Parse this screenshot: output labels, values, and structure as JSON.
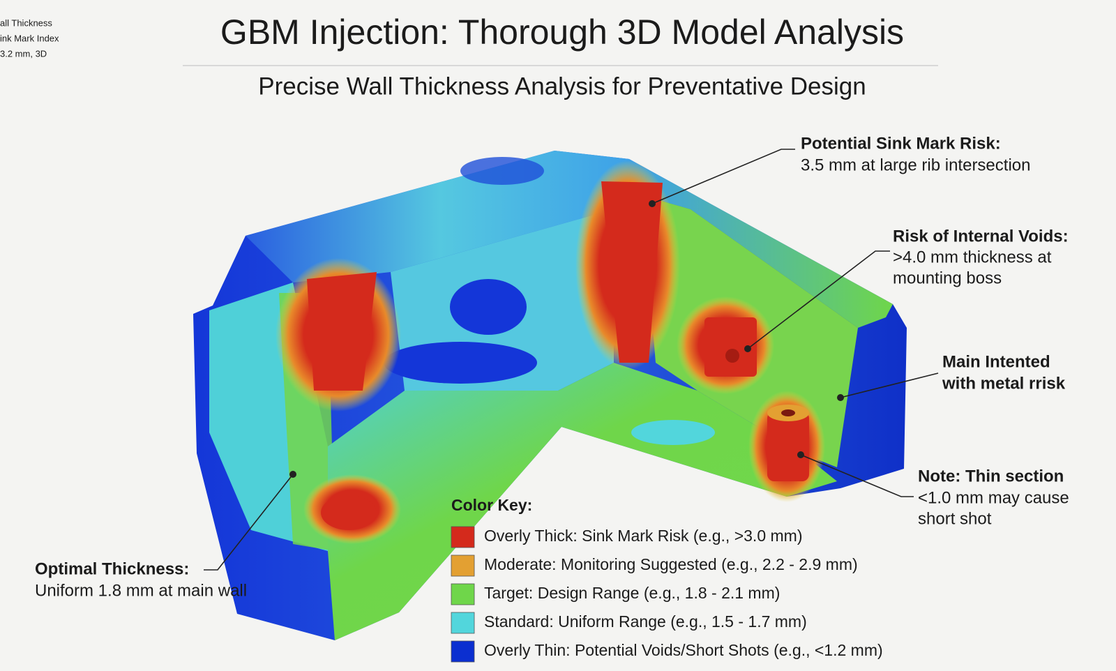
{
  "corner_note": [
    "all Thickness",
    "ink Mark Index",
    "3.2 mm, 3D"
  ],
  "header": {
    "title": "GBM Injection: Thorough 3D Model Analysis",
    "subtitle": "Precise Wall Thickness Analysis for Preventative Design"
  },
  "callouts": [
    {
      "title": "Potential Sink Mark Risk:",
      "lines": [
        "3.5 mm at large rib intersection"
      ]
    },
    {
      "title": "Risk of Internal Voids:",
      "lines": [
        ">4.0 mm thickness at",
        "mounting boss"
      ]
    },
    {
      "title": "Main Intented",
      "lines": [
        "with metal rrisk"
      ]
    },
    {
      "title": "Note: Thin section",
      "lines": [
        "<1.0 mm may cause",
        "short shot"
      ]
    },
    {
      "title": "Optimal Thickness:",
      "lines": [
        "Uniform 1.8 mm at main wall"
      ]
    }
  ],
  "color_key": {
    "title": "Color Key:",
    "items": [
      {
        "label": "Overly Thick: Sink Mark Risk (e.g., >3.0 mm)",
        "color": "#d42a1c"
      },
      {
        "label": "Moderate: Monitoring Suggested (e.g., 2.2 - 2.9 mm)",
        "color": "#e3a032"
      },
      {
        "label": "Target: Design Range (e.g., 1.8 - 2.1 mm)",
        "color": "#6fd64a"
      },
      {
        "label": "Standard: Uniform Range (e.g., 1.5 - 1.7 mm)",
        "color": "#52d6dc"
      },
      {
        "label": "Overly Thin: Potential Voids/Short Shots (e.g., <1.2 mm)",
        "color": "#0b2fd0"
      }
    ]
  }
}
